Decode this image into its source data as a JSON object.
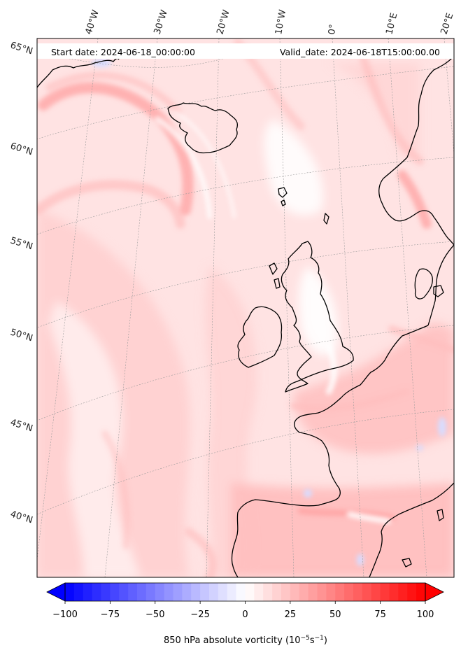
{
  "header": {
    "start_date": "Start date: 2024-06-18_00:00:00",
    "valid_date": "Valid_date: 2024-06-18T15:00:00.00"
  },
  "longitude_labels": [
    "40°W",
    "30°W",
    "20°W",
    "10°W",
    "0°",
    "10°E",
    "20°E"
  ],
  "latitude_labels": [
    "65°N",
    "60°N",
    "55°N",
    "50°N",
    "45°N",
    "40°N"
  ],
  "colorbar": {
    "title": "850 hPa absolute vorticity",
    "units_prefix": "(10",
    "units_exp1": "−5",
    "units_mid": "s",
    "units_exp2": "−1",
    "units_suffix": ")",
    "min": -100,
    "max": 100,
    "step": 5,
    "extend": "both",
    "ticks": [
      "−100",
      "−75",
      "−50",
      "−25",
      "0",
      "25",
      "50",
      "75",
      "100"
    ],
    "colormap": "bwr",
    "color_low": "#0000ff",
    "color_mid": "#ffffff",
    "color_high": "#ff0000"
  },
  "field_colors": {
    "background": "#ffe3e3",
    "light": "#ffd2d2",
    "medium": "#ffbdbd",
    "strong": "#ff9c9c",
    "white": "#ffffff",
    "negative": "#d8dcff"
  }
}
